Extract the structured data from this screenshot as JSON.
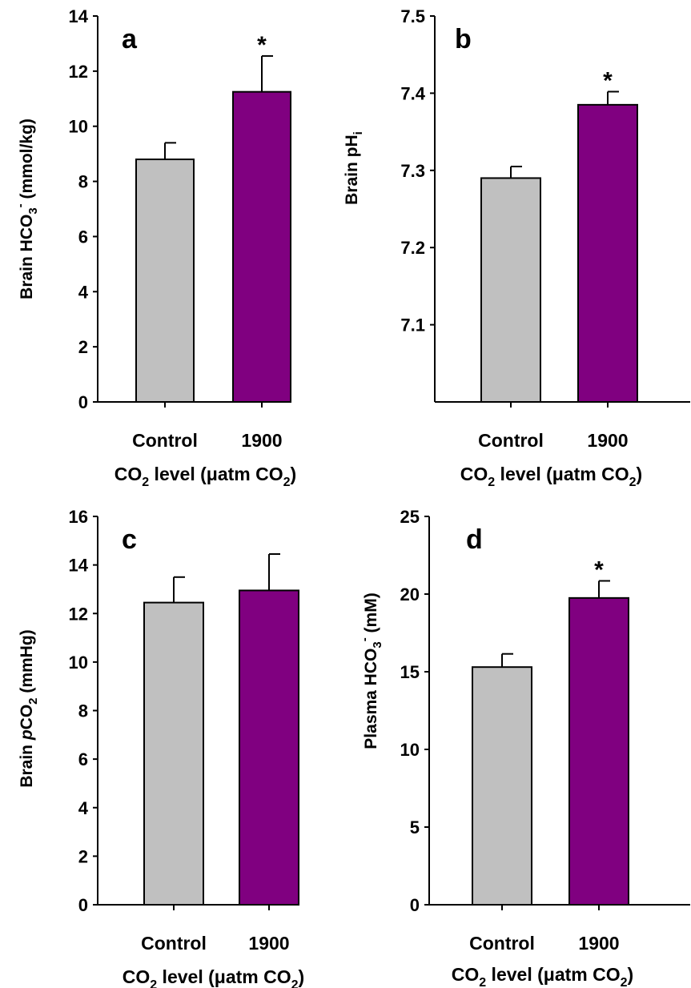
{
  "colors": {
    "control": "#c0c0c0",
    "treatment": "#800080"
  },
  "chart_data": [
    {
      "type": "bar",
      "panel": "a",
      "categories": [
        "Control",
        "1900"
      ],
      "values": [
        8.8,
        11.25
      ],
      "errors": [
        0.6,
        1.3
      ],
      "significant": [
        false,
        true
      ],
      "significance_marker": "*",
      "ylim": [
        0,
        14
      ],
      "yticks": [
        0,
        2,
        4,
        6,
        8,
        10,
        12,
        14
      ],
      "ylabel": {
        "pre": "Brain HCO",
        "sub": "3",
        "sup": "-",
        "post": " (mmol/kg)"
      },
      "xlabel": {
        "pre": "CO",
        "sub": "2",
        "mid": " level (μatm CO",
        "sub2": "2",
        "post": ")"
      }
    },
    {
      "type": "bar",
      "panel": "b",
      "categories": [
        "Control",
        "1900"
      ],
      "values": [
        7.29,
        7.385
      ],
      "errors": [
        0.015,
        0.017
      ],
      "significant": [
        false,
        true
      ],
      "significance_marker": "*",
      "ylim": [
        7.0,
        7.5
      ],
      "yticks": [
        7.1,
        7.2,
        7.3,
        7.4,
        7.5
      ],
      "ylabel": {
        "pre": "Brain pH",
        "sub": "i",
        "sup": "",
        "post": ""
      },
      "xlabel": {
        "pre": "CO",
        "sub": "2",
        "mid": " level (μatm CO",
        "sub2": "2",
        "post": ")"
      }
    },
    {
      "type": "bar",
      "panel": "c",
      "categories": [
        "Control",
        "1900"
      ],
      "values": [
        12.45,
        12.95
      ],
      "errors": [
        1.05,
        1.5
      ],
      "significant": [
        false,
        false
      ],
      "significance_marker": "*",
      "ylim": [
        0,
        16
      ],
      "yticks": [
        0,
        2,
        4,
        6,
        8,
        10,
        12,
        14,
        16
      ],
      "ylabel": {
        "pre": "Brain ",
        "ital": "p",
        "rest": "CO",
        "sub": "2",
        "post": " (mmHg)"
      },
      "xlabel": {
        "pre": "CO",
        "sub": "2",
        "mid": " level (μatm CO",
        "sub2": "2",
        "post": ")"
      }
    },
    {
      "type": "bar",
      "panel": "d",
      "categories": [
        "Control",
        "1900"
      ],
      "values": [
        15.3,
        19.75
      ],
      "errors": [
        0.85,
        1.1
      ],
      "significant": [
        false,
        true
      ],
      "significance_marker": "*",
      "ylim": [
        0,
        25
      ],
      "yticks": [
        0,
        5,
        10,
        15,
        20,
        25
      ],
      "ylabel": {
        "pre": "Plasma HCO",
        "sub": "3",
        "sup": "-",
        "post": " (mM)"
      },
      "xlabel": {
        "pre": "CO",
        "sub": "2",
        "mid": " level (μatm CO",
        "sub2": "2",
        "post": ")"
      }
    }
  ]
}
